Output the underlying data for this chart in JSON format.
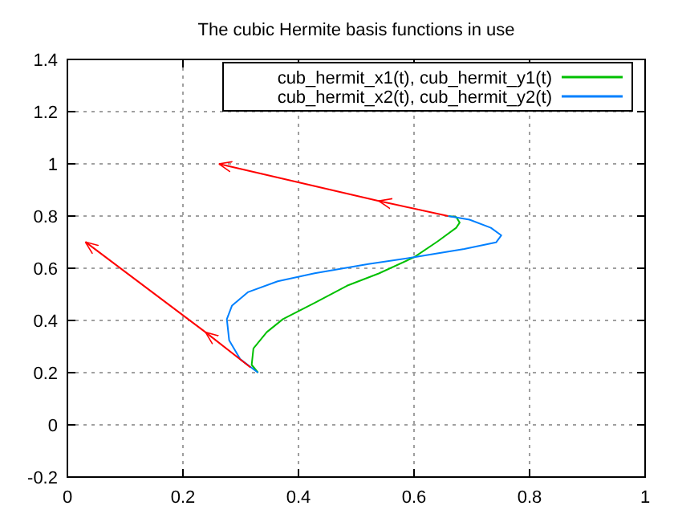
{
  "chart_data": {
    "type": "line",
    "title": "The cubic Hermite basis functions in use",
    "xlim": [
      0,
      1
    ],
    "ylim": [
      -0.2,
      1.4
    ],
    "xticks": [
      0,
      0.2,
      0.4,
      0.6,
      0.8,
      1
    ],
    "yticks": [
      -0.2,
      0,
      0.2,
      0.4,
      0.6,
      0.8,
      1,
      1.2,
      1.4
    ],
    "grid": true,
    "legend": "top right",
    "line_style": "solid",
    "series": [
      {
        "name": "cub_hermit_x1(t), cub_hermit_y1(t)",
        "color": "#00c000",
        "x": [
          0.33,
          0.319,
          0.322,
          0.345,
          0.373,
          0.428,
          0.484,
          0.539,
          0.6,
          0.641,
          0.673,
          0.679,
          0.673,
          0.659
        ],
        "values": [
          0.2,
          0.23,
          0.293,
          0.355,
          0.405,
          0.467,
          0.533,
          0.58,
          0.642,
          0.703,
          0.755,
          0.775,
          0.796,
          0.8
        ]
      },
      {
        "name": "cub_hermit_x2(t), cub_hermit_y2(t)",
        "color": "#0080ff",
        "x": [
          0.33,
          0.299,
          0.28,
          0.276,
          0.285,
          0.313,
          0.364,
          0.428,
          0.521,
          0.6,
          0.687,
          0.742,
          0.751,
          0.733,
          0.696,
          0.659
        ],
        "values": [
          0.2,
          0.252,
          0.324,
          0.405,
          0.457,
          0.509,
          0.55,
          0.581,
          0.616,
          0.642,
          0.674,
          0.699,
          0.726,
          0.755,
          0.786,
          0.8
        ]
      },
      {
        "color": "#ff0000",
        "x": [
          0.659,
          0.539,
          0.262
        ],
        "values": [
          0.8,
          0.858,
          1.0
        ]
      },
      {
        "color": "#ff0000",
        "x": [
          0.317,
          0.239,
          0.031
        ],
        "values": [
          0.22,
          0.355,
          0.701
        ]
      }
    ]
  }
}
